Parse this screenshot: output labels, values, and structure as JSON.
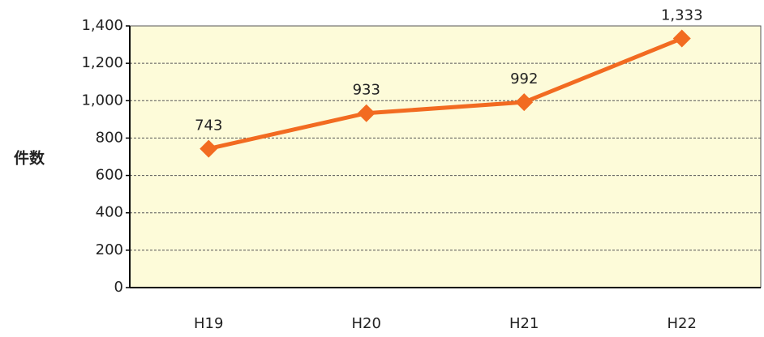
{
  "chart_data": {
    "type": "line",
    "y_label": "件数",
    "categories": [
      "H19",
      "H20",
      "H21",
      "H22"
    ],
    "values": [
      743,
      933,
      992,
      1333
    ],
    "value_labels": [
      "743",
      "933",
      "992",
      "1,333"
    ],
    "color": "#f26b21",
    "background": "#fdfbd9",
    "ylim": [
      0,
      1400
    ],
    "yticks": [
      0,
      200,
      400,
      600,
      800,
      {
        "value": 1000,
        "label": "1,000"
      },
      {
        "value": 1200,
        "label": "1,200"
      },
      {
        "value": 1400,
        "label": "1,400"
      }
    ],
    "grid": true
  }
}
